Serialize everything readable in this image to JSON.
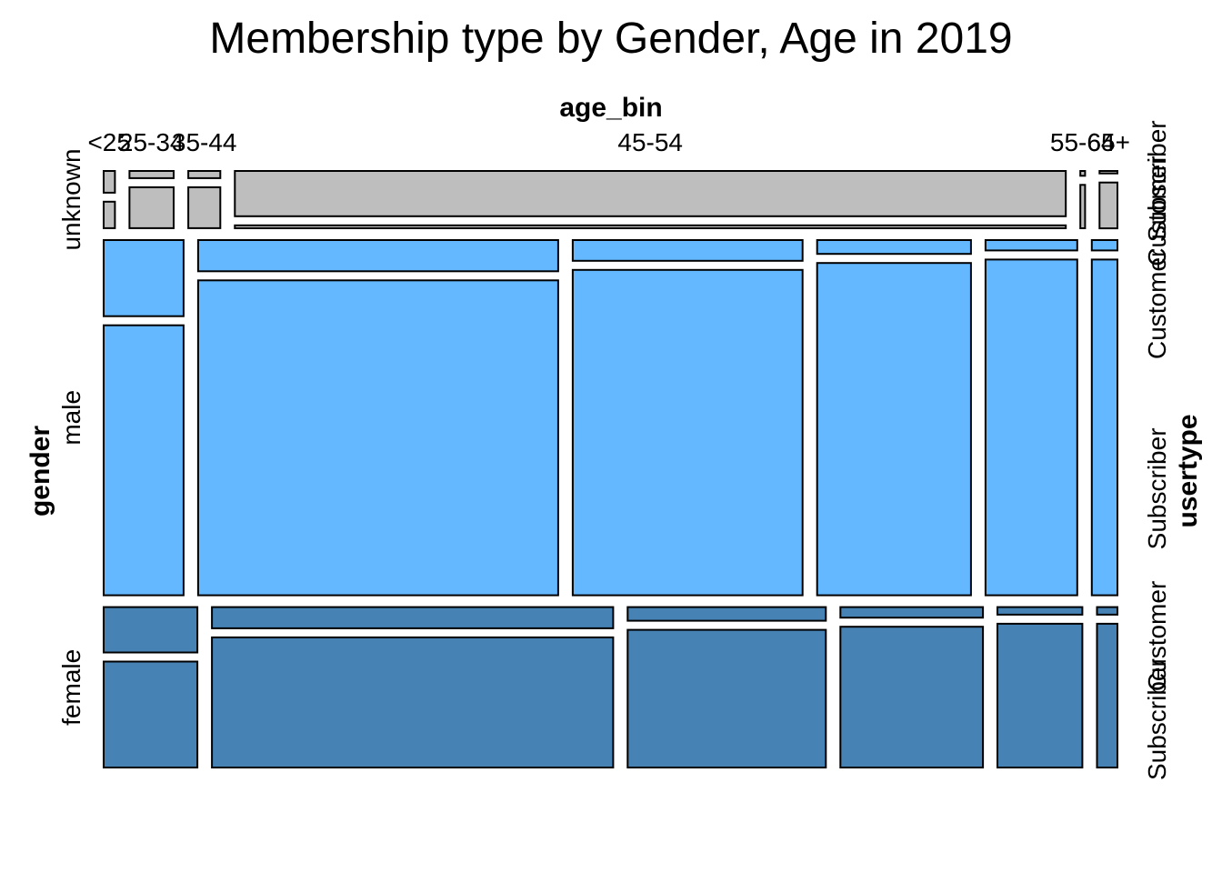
{
  "chart_data": {
    "type": "mosaic",
    "title": "Membership type by Gender, Age in 2019",
    "variables": {
      "columns": "age_bin",
      "rows": "gender",
      "split": "usertype"
    },
    "age_bins": [
      "<25",
      "25-34",
      "35-44",
      "45-54",
      "55-64",
      "65+"
    ],
    "genders": [
      "unknown",
      "male",
      "female"
    ],
    "usertypes": [
      "Customer",
      "Subscriber"
    ],
    "gender_share": {
      "unknown": 0.1,
      "male": 0.62,
      "female": 0.28
    },
    "age_share_within_gender": {
      "unknown": [
        0.012,
        0.047,
        0.034,
        0.883,
        0.005,
        0.019
      ],
      "male": [
        0.081,
        0.365,
        0.233,
        0.156,
        0.093,
        0.026
      ],
      "female": [
        0.096,
        0.411,
        0.203,
        0.146,
        0.087,
        0.021
      ]
    },
    "customer_share_within_cell": {
      "unknown": [
        0.45,
        0.15,
        0.15,
        0.94,
        0.1,
        0.05
      ],
      "male": [
        0.22,
        0.09,
        0.06,
        0.04,
        0.03,
        0.03
      ],
      "female": [
        0.3,
        0.14,
        0.09,
        0.07,
        0.05,
        0.05
      ]
    },
    "colors": {
      "unknown": "#bebebe",
      "male": "#63b8ff",
      "female": "#4682b4"
    },
    "axis_labels": {
      "columns": [
        "<25",
        "25-34",
        "35-44",
        "45-54",
        "55-64",
        "65+"
      ],
      "rows": [
        "unknown",
        "male",
        "female"
      ],
      "right_per_row": [
        [
          "Subscriber",
          "Customer"
        ],
        [
          "Customer",
          "Subscriber"
        ],
        [
          "Customer",
          "Subscriber"
        ]
      ]
    }
  }
}
